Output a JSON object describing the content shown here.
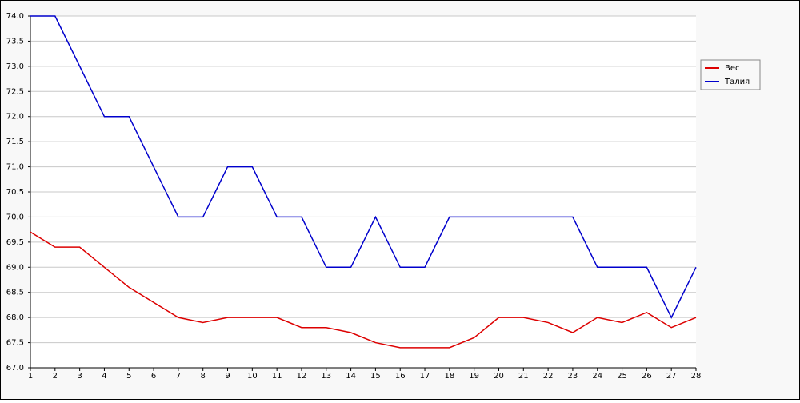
{
  "chart_data": {
    "type": "line",
    "x": [
      1,
      2,
      3,
      4,
      5,
      6,
      7,
      8,
      9,
      10,
      11,
      12,
      13,
      14,
      15,
      16,
      17,
      18,
      19,
      20,
      21,
      22,
      23,
      24,
      25,
      26,
      27,
      28
    ],
    "series": [
      {
        "name": "Вес",
        "color": "#dd0000",
        "values": [
          69.7,
          69.4,
          69.4,
          69.0,
          68.6,
          68.3,
          68.0,
          67.9,
          68.0,
          68.0,
          68.0,
          67.8,
          67.8,
          67.7,
          67.5,
          67.4,
          67.4,
          67.4,
          67.6,
          68.0,
          68.0,
          67.9,
          67.7,
          68.0,
          67.9,
          68.1,
          67.8,
          68.0
        ]
      },
      {
        "name": "Талия",
        "color": "#0000cc",
        "values": [
          74,
          74,
          73,
          72,
          72,
          71,
          70,
          70,
          71,
          71,
          70,
          70,
          69,
          69,
          70,
          69,
          69,
          70,
          70,
          70,
          70,
          70,
          70,
          69,
          69,
          69,
          68,
          69
        ]
      }
    ],
    "xlim": [
      1,
      28
    ],
    "xticks": [
      1,
      2,
      3,
      4,
      5,
      6,
      7,
      8,
      9,
      10,
      11,
      12,
      13,
      14,
      15,
      16,
      17,
      18,
      19,
      20,
      21,
      22,
      23,
      24,
      25,
      26,
      27,
      28
    ],
    "ylim": [
      67,
      74
    ],
    "yticks": [
      {
        "value": 67,
        "label": "67.0"
      },
      {
        "value": 67.5,
        "label": "67.5"
      },
      {
        "value": 68,
        "label": "68.0"
      },
      {
        "value": 68.5,
        "label": "68.5"
      },
      {
        "value": 69,
        "label": "69.0"
      },
      {
        "value": 69.5,
        "label": "69.5"
      },
      {
        "value": 70,
        "label": "70.0"
      },
      {
        "value": 70.5,
        "label": "70.5"
      },
      {
        "value": 71,
        "label": "71.0"
      },
      {
        "value": 71.5,
        "label": "71.5"
      },
      {
        "value": 72,
        "label": "72.0"
      },
      {
        "value": 72.5,
        "label": "72.5"
      },
      {
        "value": 73,
        "label": "73.0"
      },
      {
        "value": 73.5,
        "label": "73.5"
      },
      {
        "value": 74,
        "label": "74.0"
      }
    ],
    "grid": true,
    "legend": "right"
  }
}
